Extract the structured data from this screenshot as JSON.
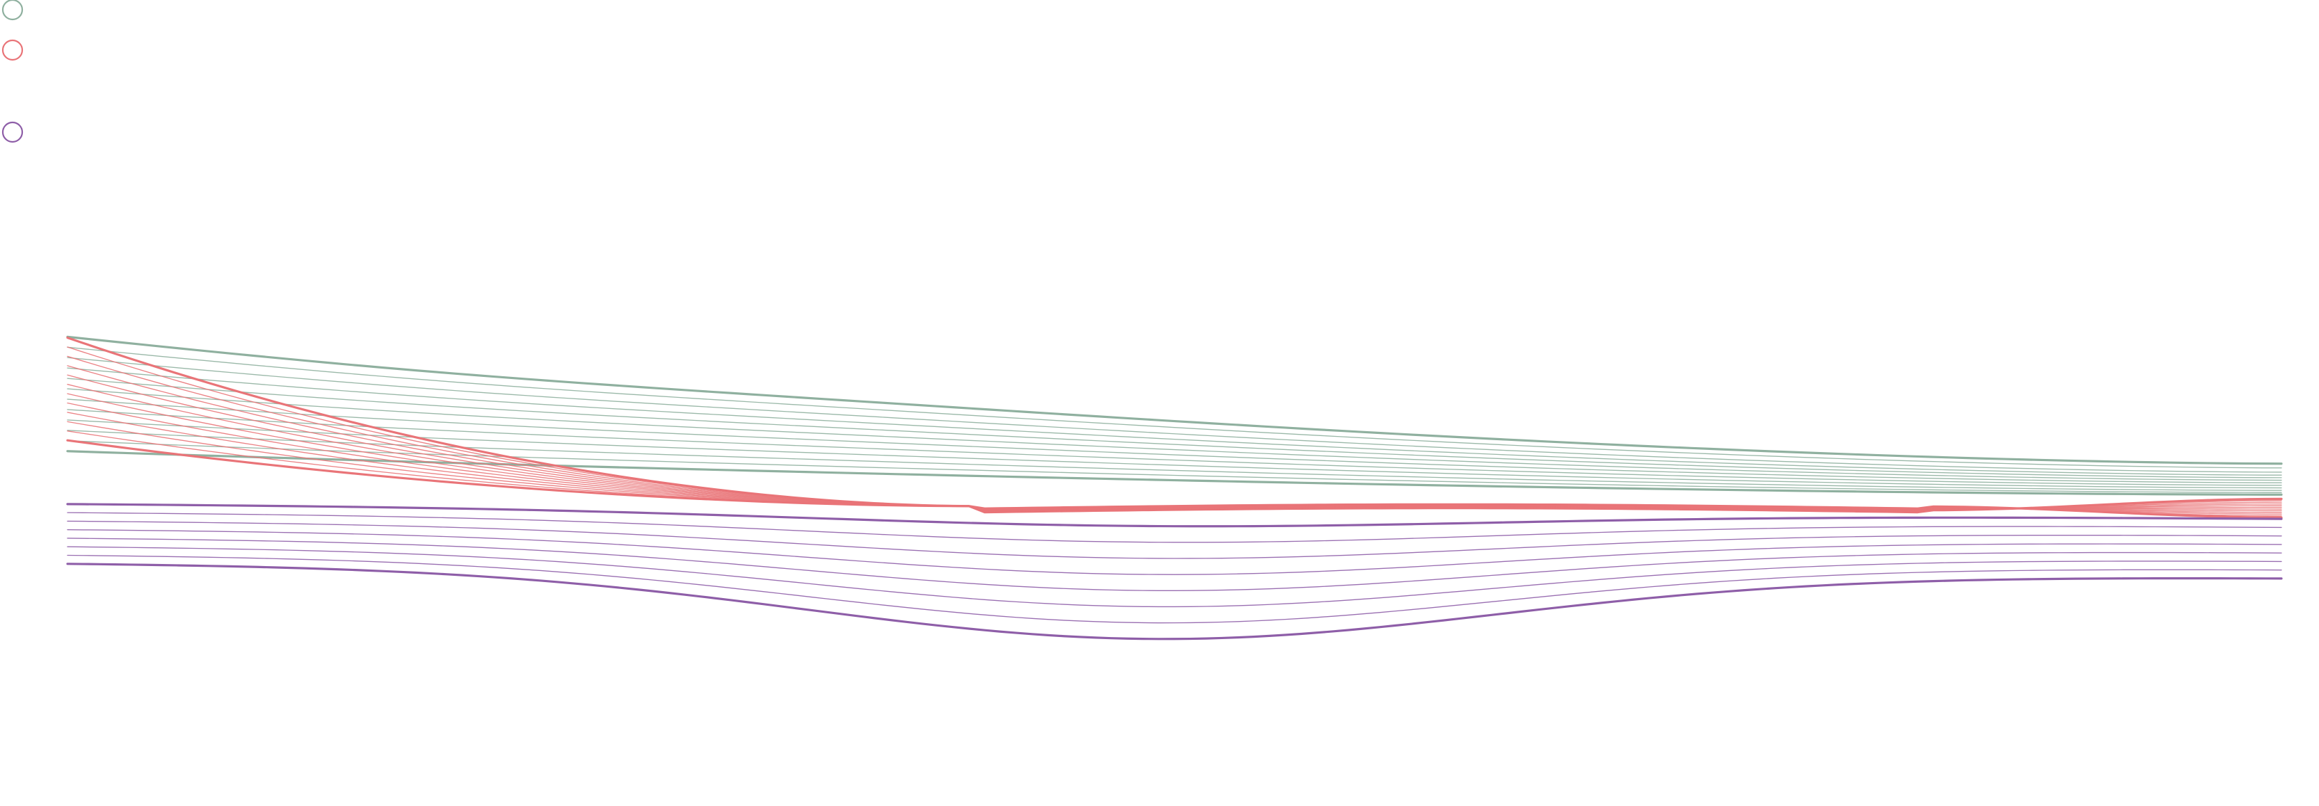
{
  "chart_data": {
    "type": "line",
    "title": "",
    "xlabel": "",
    "ylabel": "",
    "grid": false,
    "legend": "top-left",
    "x_range": [
      0,
      1
    ],
    "y_range": [
      0,
      1
    ],
    "series": [
      {
        "key": "upper",
        "color": "#8fb09f",
        "line_count": 12,
        "start": [
          0.93,
          0.905,
          0.88,
          0.855,
          0.83,
          0.805,
          0.78,
          0.755,
          0.73,
          0.705,
          0.68,
          0.655
        ],
        "end": [
          0.625,
          0.615,
          0.605,
          0.598,
          0.592,
          0.586,
          0.58,
          0.574,
          0.568,
          0.562,
          0.557,
          0.552
        ]
      },
      {
        "key": "middle",
        "color": "#e97478",
        "line_count": 12,
        "start": [
          0.922,
          0.9,
          0.878,
          0.856,
          0.834,
          0.812,
          0.79,
          0.768,
          0.746,
          0.724,
          0.702,
          0.68
        ],
        "end": [
          0.542,
          0.538,
          0.534,
          0.53,
          0.526,
          0.522,
          0.518,
          0.514,
          0.51,
          0.506,
          0.502,
          0.498
        ]
      },
      {
        "key": "lower",
        "color": "#8e5ea8",
        "line_count": 8,
        "start": [
          0.53,
          0.51,
          0.49,
          0.47,
          0.45,
          0.43,
          0.41,
          0.39
        ],
        "end": [
          0.495,
          0.475,
          0.455,
          0.435,
          0.415,
          0.395,
          0.375,
          0.355
        ]
      }
    ]
  }
}
